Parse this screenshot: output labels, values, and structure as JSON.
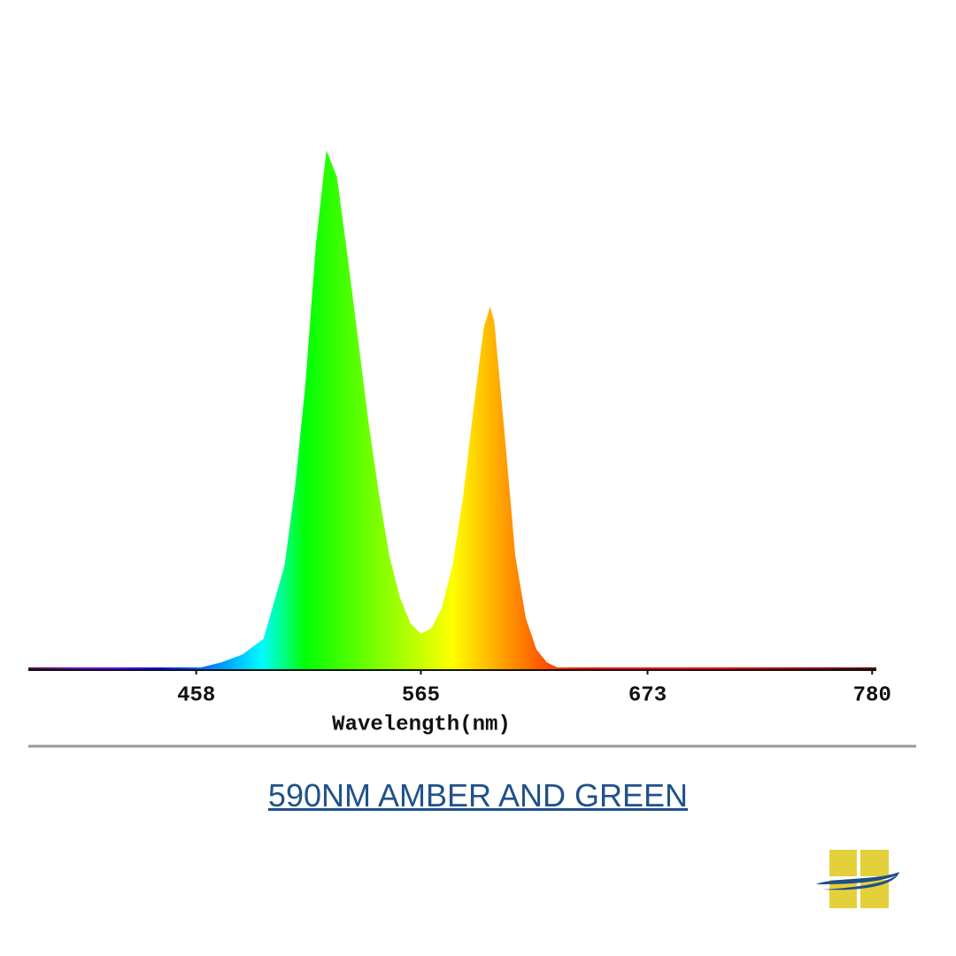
{
  "chart_data": {
    "type": "area",
    "xlabel": "Wavelength(nm)",
    "fill": "spectrum",
    "xlim": [
      378,
      782
    ],
    "ylim": [
      0,
      1
    ],
    "xticks": [
      458,
      565,
      673,
      780
    ],
    "x": [
      380,
      400,
      420,
      440,
      450,
      460,
      470,
      480,
      490,
      500,
      505,
      510,
      515,
      520,
      525,
      530,
      535,
      540,
      545,
      550,
      555,
      560,
      565,
      570,
      575,
      580,
      585,
      590,
      595,
      598,
      600,
      605,
      610,
      615,
      620,
      625,
      630,
      640,
      660,
      700,
      740,
      780
    ],
    "values": [
      0,
      0,
      0,
      0,
      0.002,
      0.005,
      0.015,
      0.03,
      0.06,
      0.2,
      0.35,
      0.55,
      0.82,
      1.0,
      0.95,
      0.8,
      0.64,
      0.48,
      0.34,
      0.22,
      0.14,
      0.09,
      0.07,
      0.08,
      0.12,
      0.2,
      0.33,
      0.5,
      0.66,
      0.7,
      0.67,
      0.45,
      0.22,
      0.1,
      0.04,
      0.015,
      0.005,
      0.002,
      0.001,
      0.001,
      0,
      0
    ]
  },
  "caption": "590NM AMBER AND GREEN"
}
